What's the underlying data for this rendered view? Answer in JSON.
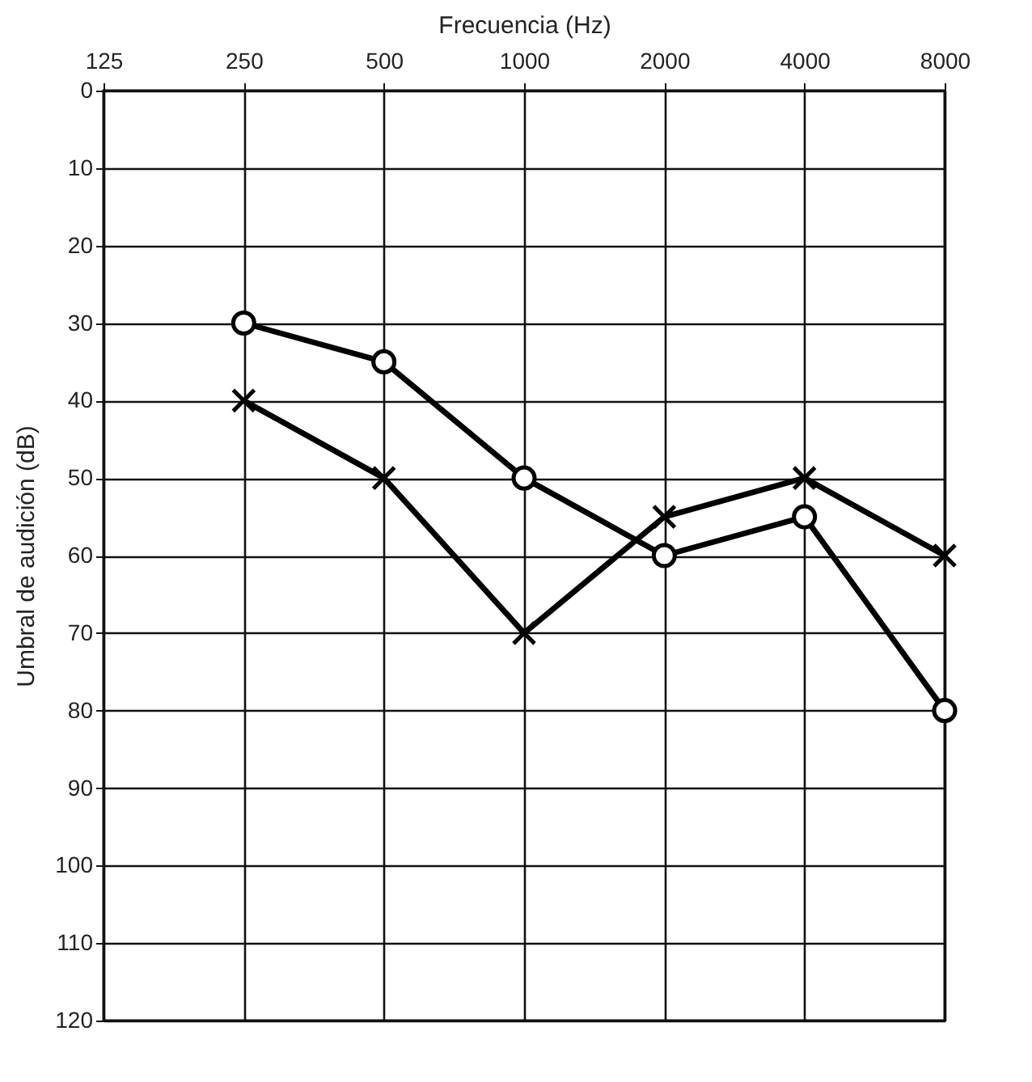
{
  "chart_data": {
    "type": "line",
    "xlabel": "Frecuencia (Hz)",
    "ylabel": "Umbral de audición (dB)",
    "log": "x",
    "xlim": [
      125,
      8000
    ],
    "xticks": [
      125,
      250,
      500,
      1000,
      2000,
      4000,
      8000
    ],
    "ylim": [
      120,
      0
    ],
    "yticks": [
      0,
      10,
      20,
      30,
      40,
      50,
      60,
      70,
      80,
      90,
      100,
      110,
      120
    ],
    "grid": true,
    "line_style": "solid",
    "series": [
      {
        "color": "#000000",
        "marker": "circle",
        "x": [
          250,
          500,
          1000,
          2000,
          4000,
          8000
        ],
        "values": [
          30,
          35,
          50,
          60,
          55,
          80
        ]
      },
      {
        "color": "#000000",
        "marker": "cross",
        "x": [
          250,
          500,
          1000,
          2000,
          4000,
          8000
        ],
        "values": [
          40,
          50,
          70,
          55,
          50,
          60
        ]
      }
    ]
  }
}
